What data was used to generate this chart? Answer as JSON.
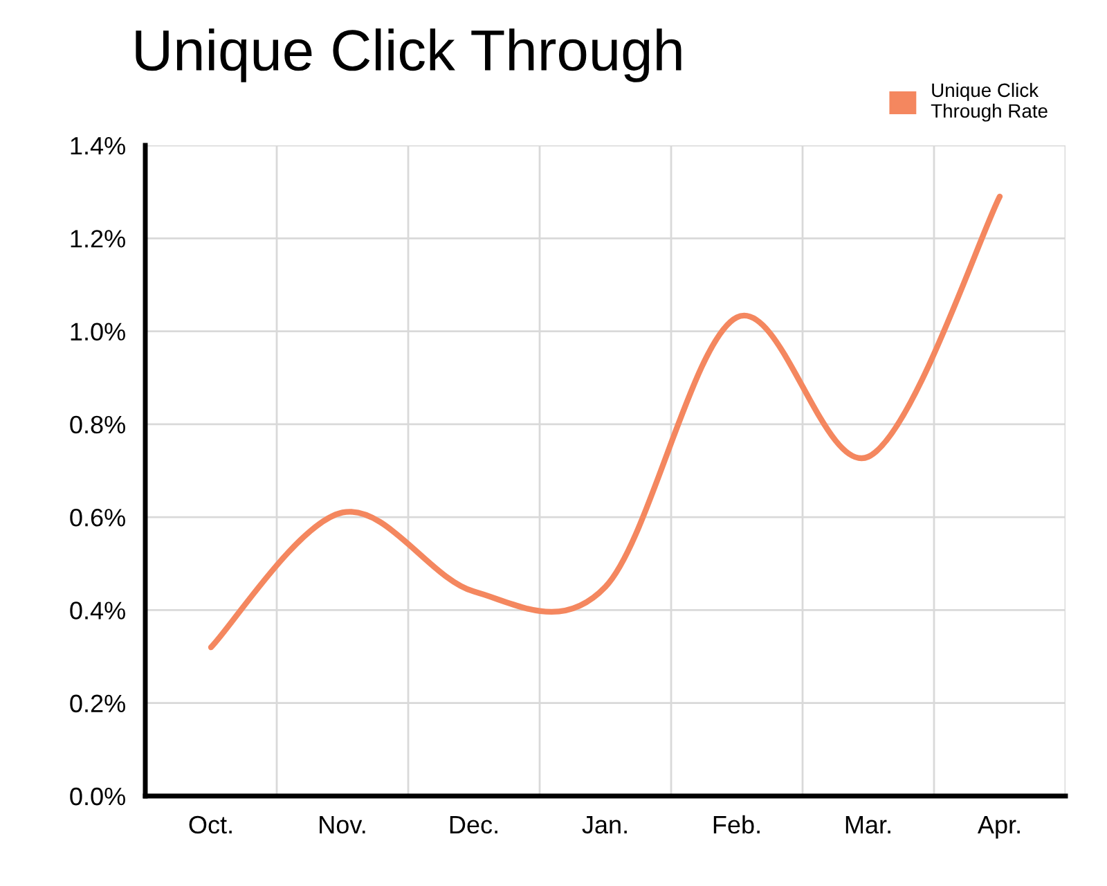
{
  "chart_data": {
    "type": "line",
    "title": "Unique Click Through",
    "categories": [
      "Oct.",
      "Nov.",
      "Dec.",
      "Jan.",
      "Feb.",
      "Mar.",
      "Apr."
    ],
    "series": [
      {
        "name": "Unique Click\nThrough Rate",
        "color": "#f4875f",
        "values": [
          0.32,
          0.61,
          0.44,
          0.45,
          1.03,
          0.73,
          1.29
        ]
      }
    ],
    "ylim": [
      0,
      1.4
    ],
    "yticks": [
      {
        "value": 0,
        "label": "0.0%"
      },
      {
        "value": 0.2,
        "label": "0.2%"
      },
      {
        "value": 0.4,
        "label": "0.4%"
      },
      {
        "value": 0.6,
        "label": "0.6%"
      },
      {
        "value": 0.8,
        "label": "0.8%"
      },
      {
        "value": 1.0,
        "label": "1.0%"
      },
      {
        "value": 1.2,
        "label": "1.2%"
      },
      {
        "value": 1.4,
        "label": "1.4%"
      }
    ],
    "grid": true,
    "legend": "top right",
    "marker": "none",
    "line_style": "solid"
  }
}
